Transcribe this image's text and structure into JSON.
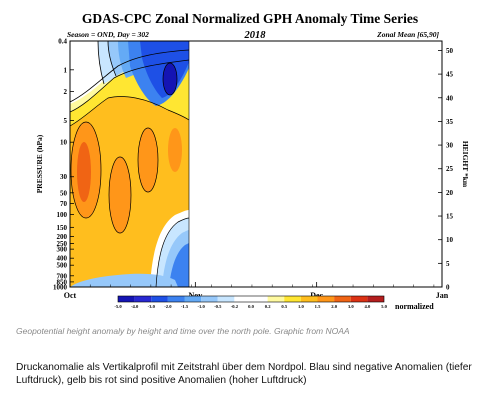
{
  "figure": {
    "title": "GDAS-CPC Zonal Normalized GPH Anomaly Time Series",
    "season": "Season = OND, Day = 302",
    "year": "2018",
    "zonal_mean": "Zonal Mean [65,90]"
  },
  "chart_data": {
    "type": "heatmap",
    "title": "GDAS-CPC Zonal Normalized GPH Anomaly Time Series",
    "ylabel": "PRESSURE (hPa)",
    "ylabel_right": "HEIGHT *km",
    "x_ticks": [
      "Oct",
      "Nov",
      "Dec",
      "Jan"
    ],
    "y_ticks_pressure": [
      "0.4",
      "1",
      "2",
      "5",
      "10",
      "30",
      "50",
      "70",
      "100",
      "150",
      "200",
      "250",
      "300",
      "400",
      "500",
      "700",
      "850",
      "1000"
    ],
    "y_ticks_height": [
      "50",
      "45",
      "40",
      "35",
      "30",
      "25",
      "20",
      "15",
      "10",
      "5",
      "0"
    ],
    "yrange_pressure_hPa": [
      1000,
      0.4
    ],
    "data_coverage": "Oct 1 – Oct 29 (Day 302)",
    "colorbar": {
      "label": "normalized",
      "levels": [
        "-5.0",
        "-4.0",
        "-3.0",
        "-2.0",
        "-1.5",
        "-1.0",
        "-0.5",
        "-0.2",
        "0.0",
        "0.2",
        "0.5",
        "1.0",
        "1.5",
        "2.0",
        "3.0",
        "4.0",
        "5.0"
      ],
      "colors": [
        "#1414b4",
        "#2828d2",
        "#1e50e6",
        "#3c82f0",
        "#64aaf5",
        "#96c8fa",
        "#c8e6ff",
        "#ffffff",
        "#ffffff",
        "#fffaa0",
        "#ffe632",
        "#ffbe1e",
        "#ff9619",
        "#f06414",
        "#dc3214",
        "#b41e1e"
      ]
    }
  },
  "caption": "Geopotential height anomaly by height and time over the north pole. Graphic from NOAA",
  "description": "Druckanomalie als Vertikalprofil mit Zeitstrahl über dem Nordpol. Blau sind negative Anomalien (tiefer Luftdruck), gelb bis rot sind positive Anomalien (hoher Luftdruck)"
}
